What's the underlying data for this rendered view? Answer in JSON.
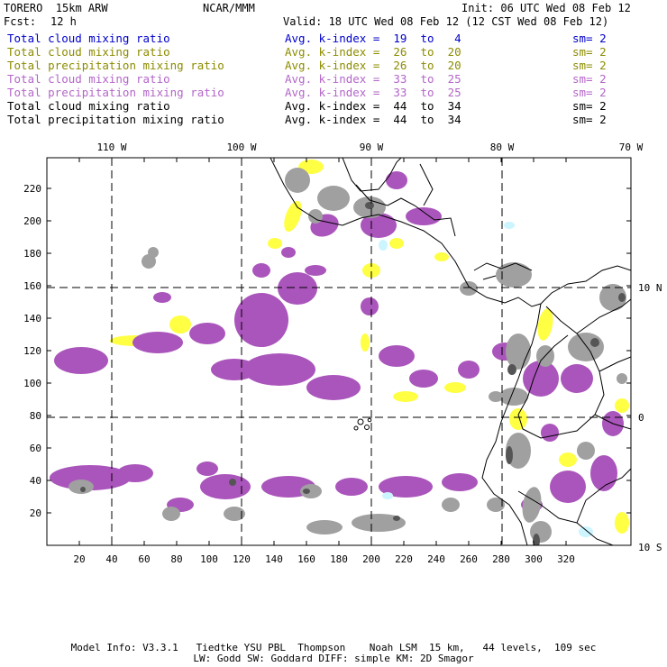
{
  "header": {
    "model": "TORERO  15km ARW",
    "org": "NCAR/MMM",
    "init": "Init: 06 UTC Wed 08 Feb 12",
    "fcst_label": "Fcst:",
    "fcst_value": "12 h",
    "valid": "Valid: 18 UTC Wed 08 Feb 12 (12 CST Wed 08 Feb 12)"
  },
  "legend": [
    {
      "field": "Total cloud mixing ratio",
      "index": "Avg. k-index =  19  to   4",
      "sm": "sm= 2",
      "color": "#0000cc"
    },
    {
      "field": "Total cloud mixing ratio",
      "index": "Avg. k-index =  26  to  20",
      "sm": "sm= 2",
      "color": "#8c8c00"
    },
    {
      "field": "Total precipitation mixing ratio",
      "index": "Avg. k-index =  26  to  20",
      "sm": "sm= 2",
      "color": "#8c8c00"
    },
    {
      "field": "Total cloud mixing ratio",
      "index": "Avg. k-index =  33  to  25",
      "sm": "sm= 2",
      "color": "#b366c8"
    },
    {
      "field": "Total precipitation mixing ratio",
      "index": "Avg. k-index =  33  to  25",
      "sm": "sm= 2",
      "color": "#b366c8"
    },
    {
      "field": "Total cloud mixing ratio",
      "index": "Avg. k-index =  44  to  34",
      "sm": "sm= 2",
      "color": "#000000"
    },
    {
      "field": "Total precipitation mixing ratio",
      "index": "Avg. k-index =  44  to  34",
      "sm": "sm= 2",
      "color": "#000000"
    }
  ],
  "map": {
    "lon_labels": [
      "110 W",
      "100 W",
      "90 W",
      "80 W",
      "70 W"
    ],
    "lat_labels": [
      "10 N",
      "0",
      "10 S"
    ],
    "x_ticks": [
      "20",
      "40",
      "60",
      "80",
      "100",
      "120",
      "140",
      "160",
      "180",
      "200",
      "220",
      "240",
      "260",
      "280",
      "300",
      "320"
    ],
    "y_ticks": [
      "20",
      "40",
      "60",
      "80",
      "100",
      "120",
      "140",
      "160",
      "180",
      "200",
      "220"
    ],
    "colors": {
      "yellow": "#ffff44",
      "purple": "#aa55bb",
      "gray": "#a0a0a0",
      "dark": "#555555",
      "cyan": "#ccf5ff",
      "coast": "#000000"
    }
  },
  "footer": {
    "line1": "Model Info: V3.3.1   Tiedtke YSU PBL  Thompson    Noah LSM  15 km,   44 levels,  109 sec",
    "line2": "LW: Godd SW: Goddard DIFF: simple KM: 2D Smagor"
  }
}
